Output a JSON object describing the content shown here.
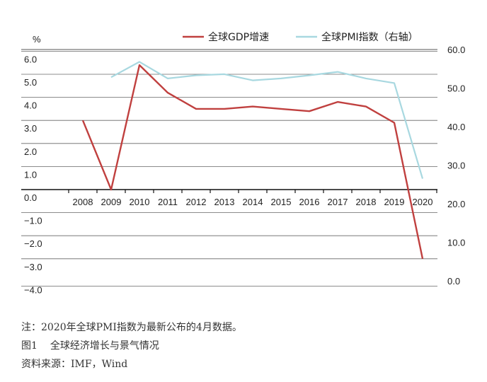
{
  "chart_data": {
    "type": "line",
    "y_unit_label": "%",
    "categories": [
      "2008",
      "2009",
      "2010",
      "2011",
      "2012",
      "2013",
      "2014",
      "2015",
      "2016",
      "2017",
      "2018",
      "2019",
      "2020"
    ],
    "y_left": {
      "min": -4.0,
      "max": 7.0,
      "ticks": [
        "6.0",
        "5.0",
        "4.0",
        "3.0",
        "2.0",
        "1.0",
        "0.0",
        "−1.0",
        "−2.0",
        "−3.0",
        "−4.0"
      ]
    },
    "y_right": {
      "min": 0.0,
      "max": 60.0,
      "ticks": [
        "60.0",
        "50.0",
        "40.0",
        "30.0",
        "20.0",
        "10.0",
        "0.0"
      ]
    },
    "series": [
      {
        "name": "全球GDP增速",
        "axis": "left",
        "color": "#c0403f",
        "values": [
          3.0,
          0.0,
          5.4,
          4.2,
          3.5,
          3.5,
          3.6,
          3.5,
          3.4,
          3.8,
          3.6,
          2.9,
          -3.0
        ]
      },
      {
        "name": "全球PMI指数（右轴）",
        "axis": "right",
        "color": "#a8d8e0",
        "values": [
          null,
          52.8,
          56.8,
          52.5,
          53.3,
          53.6,
          52.0,
          52.5,
          53.3,
          54.2,
          52.5,
          51.3,
          26.5
        ]
      }
    ],
    "grid": true,
    "legend_position": "top-right"
  },
  "notes": {
    "note": "注：2020年全球PMI指数为最新公布的4月数据。",
    "figure_label": "图1",
    "figure_title": "全球经济增长与景气情况",
    "source": "资料来源：IMF，Wind"
  }
}
